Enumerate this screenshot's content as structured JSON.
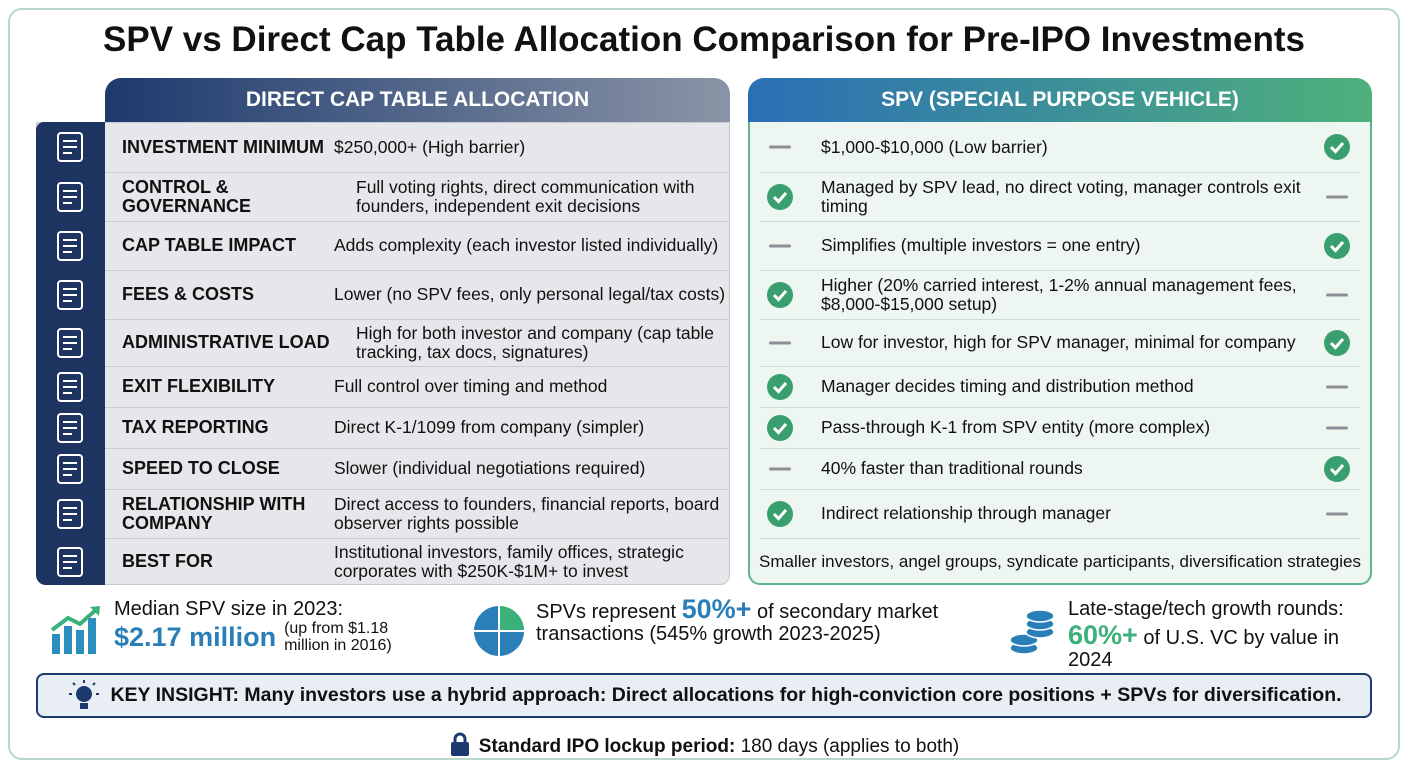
{
  "title": "SPV vs Direct Cap Table Allocation Comparison for Pre-IPO Investments",
  "left_header": "DIRECT CAP TABLE ALLOCATION",
  "right_header": "SPV (SPECIAL PURPOSE VEHICLE)",
  "rows": [
    {
      "label": "INVESTMENT MINIMUM",
      "direct": "$250,000+ (High barrier)",
      "spv": "$1,000-$10,000 (Low barrier)",
      "spv_check": true
    },
    {
      "label": "CONTROL & GOVERNANCE",
      "direct": "Full voting rights, direct communication with founders, independent exit decisions",
      "spv": "Managed by SPV lead, no direct voting, manager controls exit timing",
      "spv_check": false
    },
    {
      "label": "CAP TABLE IMPACT",
      "direct": "Adds complexity (each investor listed individually)",
      "spv": "Simplifies (multiple investors = one entry)",
      "spv_check": true
    },
    {
      "label": "FEES & COSTS",
      "direct": "Lower (no SPV fees, only personal legal/tax costs)",
      "spv": "Higher (20% carried interest, 1-2% annual management fees, $8,000-$15,000 setup)",
      "spv_check": false
    },
    {
      "label": "ADMINISTRATIVE LOAD",
      "direct": "High for both investor and company (cap table tracking, tax docs, signatures)",
      "spv": "Low for investor, high for SPV manager, minimal for company",
      "spv_check": true
    },
    {
      "label": "EXIT FLEXIBILITY",
      "direct": "Full control over timing and method",
      "spv": "Manager decides timing and distribution method",
      "spv_check": false
    },
    {
      "label": "TAX REPORTING",
      "direct": "Direct K-1/1099 from company (simpler)",
      "spv": "Pass-through K-1 from SPV entity (more complex)",
      "spv_check": false
    },
    {
      "label": "SPEED TO CLOSE",
      "direct": "Slower (individual negotiations required)",
      "spv": "40% faster than traditional rounds",
      "spv_check": true
    },
    {
      "label": "RELATIONSHIP WITH COMPANY",
      "direct": "Direct access to founders, financial reports, board observer rights possible",
      "spv": "Indirect relationship through manager",
      "spv_check": false
    },
    {
      "label": "BEST FOR",
      "direct": "Institutional investors, family offices, strategic corporates with $250K-$1M+ to invest",
      "spv": "Smaller investors, angel groups, syndicate participants, diversification strategies"
    }
  ],
  "stats": [
    {
      "lead": "Median SPV size in 2023:",
      "highlight": "$2.17 million",
      "note": "(up from $1.18 million in 2016)"
    },
    {
      "lead": "SPVs represent",
      "highlight": "50%+",
      "note": "of secondary market transactions (545% growth 2023-2025)"
    },
    {
      "lead": "Late-stage/tech growth rounds:",
      "highlight": "60%+",
      "note": "of U.S. VC by value in 2024"
    }
  ],
  "insight": "KEY INSIGHT: Many investors use a hybrid approach: Direct allocations for high-conviction core positions + SPVs for diversification.",
  "footer": {
    "label": "Standard IPO lockup period:",
    "text": "180 days (applies to both)"
  }
}
